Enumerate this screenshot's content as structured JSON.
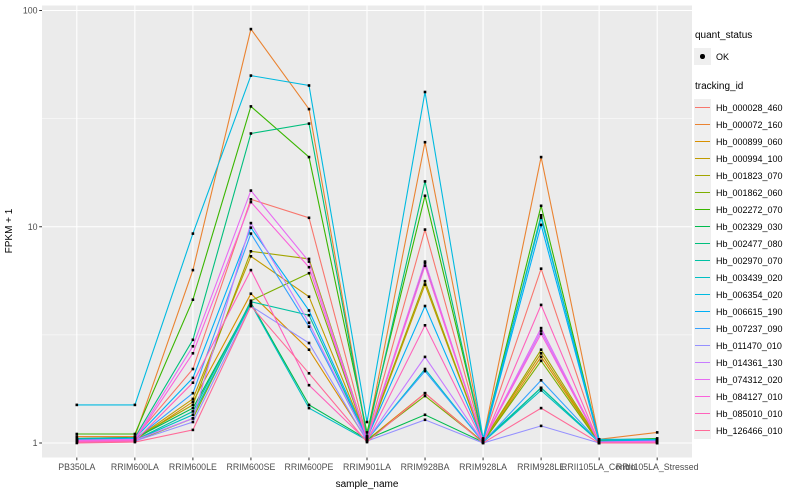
{
  "chart_data": {
    "type": "line",
    "title": "",
    "xlabel": "sample_name",
    "ylabel": "FPKM + 1",
    "yscale": "log10",
    "ylim": [
      1,
      100
    ],
    "yticks": [
      "1",
      "10",
      "100"
    ],
    "ytick_values": [
      1,
      10,
      100
    ],
    "yminor_values": [
      3.1623,
      31.623
    ],
    "grid": "on",
    "panel_color": "#ebebeb",
    "grid_color": "#ffffff",
    "axis_text_color": "#4d4d4d",
    "point_color": "#000000",
    "legend_position": "right",
    "categories": [
      "PB350LA",
      "RRIM600LA",
      "RRIM600LE",
      "RRIM600SE",
      "RRIM600PE",
      "RRIM901LA",
      "RRIM928BA",
      "RRIM928LA",
      "RRIM928LE",
      "RRII105LA_Control",
      "RRII105LA_Stressed"
    ],
    "legend": {
      "quant_status": {
        "title": "quant_status",
        "items": [
          {
            "label": "OK",
            "symbol": "point"
          }
        ]
      },
      "tracking_id": {
        "title": "tracking_id"
      }
    },
    "series": [
      {
        "name": "Hb_000028_460",
        "color": "#F8766D",
        "values": [
          1.05,
          1.06,
          2.2,
          13.4,
          11.0,
          1.06,
          9.7,
          1.03,
          6.4,
          1.02,
          1.02
        ]
      },
      {
        "name": "Hb_000072_160",
        "color": "#EA8331",
        "values": [
          1.07,
          1.07,
          6.3,
          82,
          35,
          1.08,
          24.6,
          1.04,
          21,
          1.04,
          1.12
        ]
      },
      {
        "name": "Hb_000899_060",
        "color": "#D89000",
        "values": [
          1.02,
          1.03,
          1.55,
          4.9,
          2.7,
          1.03,
          1.7,
          1.01,
          2.5,
          1.01,
          1.01
        ]
      },
      {
        "name": "Hb_000994_100",
        "color": "#C09B00",
        "values": [
          1.03,
          1.04,
          1.6,
          7.3,
          4.75,
          1.04,
          5.4,
          1.02,
          2.6,
          1.01,
          1.02
        ]
      },
      {
        "name": "Hb_001823_070",
        "color": "#A3A500",
        "values": [
          1.03,
          1.05,
          1.5,
          7.7,
          7.1,
          1.05,
          5.6,
          1.02,
          2.7,
          1.02,
          1.02
        ]
      },
      {
        "name": "Hb_001862_060",
        "color": "#7CAE00",
        "values": [
          1.01,
          1.02,
          1.3,
          4.55,
          6.1,
          1.03,
          1.65,
          1.01,
          2.4,
          1.0,
          1.0
        ]
      },
      {
        "name": "Hb_002272_070",
        "color": "#39B600",
        "values": [
          1.1,
          1.1,
          4.6,
          36,
          21,
          1.12,
          13.9,
          1.04,
          12.5,
          1.03,
          1.05
        ]
      },
      {
        "name": "Hb_002329_030",
        "color": "#00BB4E",
        "values": [
          1.04,
          1.05,
          1.45,
          4.45,
          1.5,
          1.04,
          1.35,
          1.01,
          1.8,
          1.01,
          1.04
        ]
      },
      {
        "name": "Hb_002477_080",
        "color": "#00BF7D",
        "values": [
          1.05,
          1.06,
          3.0,
          27,
          30,
          1.07,
          16.2,
          1.03,
          11.3,
          1.02,
          1.04
        ]
      },
      {
        "name": "Hb_002970_070",
        "color": "#00C1A3",
        "values": [
          1.02,
          1.03,
          1.4,
          4.5,
          3.9,
          1.03,
          6.8,
          1.02,
          1.8,
          1.01,
          1.03
        ]
      },
      {
        "name": "Hb_003439_020",
        "color": "#00BFC4",
        "values": [
          1.02,
          1.03,
          1.35,
          4.4,
          1.45,
          1.03,
          2.2,
          1.01,
          1.75,
          1.01,
          1.02
        ]
      },
      {
        "name": "Hb_006354_020",
        "color": "#00BAE0",
        "values": [
          1.5,
          1.5,
          9.3,
          50,
          45,
          1.25,
          42,
          1.05,
          11.0,
          1.04,
          1.04
        ]
      },
      {
        "name": "Hb_006615_190",
        "color": "#00B0F6",
        "values": [
          1.04,
          1.05,
          2.0,
          9.9,
          4.1,
          1.05,
          4.3,
          1.02,
          10.2,
          1.02,
          1.03
        ]
      },
      {
        "name": "Hb_007237_090",
        "color": "#35A2FF",
        "values": [
          1.03,
          1.04,
          1.7,
          9.3,
          3.45,
          1.04,
          2.15,
          1.01,
          1.95,
          1.01,
          1.02
        ]
      },
      {
        "name": "Hb_011470_010",
        "color": "#9590FF",
        "values": [
          1.01,
          1.02,
          1.25,
          4.3,
          2.9,
          1.02,
          1.28,
          1.0,
          1.2,
          1.0,
          1.0
        ]
      },
      {
        "name": "Hb_014361_130",
        "color": "#C77CFF",
        "values": [
          1.02,
          1.03,
          1.3,
          10.4,
          3.6,
          1.03,
          2.5,
          1.01,
          3.3,
          1.0,
          1.01
        ]
      },
      {
        "name": "Hb_074312_020",
        "color": "#E76BF3",
        "values": [
          1.03,
          1.04,
          2.8,
          14.7,
          6.9,
          1.05,
          6.9,
          1.02,
          3.4,
          1.01,
          1.02
        ]
      },
      {
        "name": "Hb_084127_010",
        "color": "#FA62DB",
        "values": [
          1.02,
          1.03,
          2.6,
          13.0,
          6.5,
          1.04,
          6.6,
          1.02,
          3.2,
          1.01,
          1.01
        ]
      },
      {
        "name": "Hb_085010_010",
        "color": "#FF62BC",
        "values": [
          1.01,
          1.02,
          1.9,
          6.3,
          1.85,
          1.02,
          3.5,
          1.01,
          4.35,
          1.0,
          1.0
        ]
      },
      {
        "name": "Hb_126466_010",
        "color": "#FF6A98",
        "values": [
          1.0,
          1.01,
          1.15,
          4.3,
          2.1,
          1.01,
          1.7,
          1.0,
          1.45,
          1.0,
          1.0
        ]
      }
    ]
  }
}
